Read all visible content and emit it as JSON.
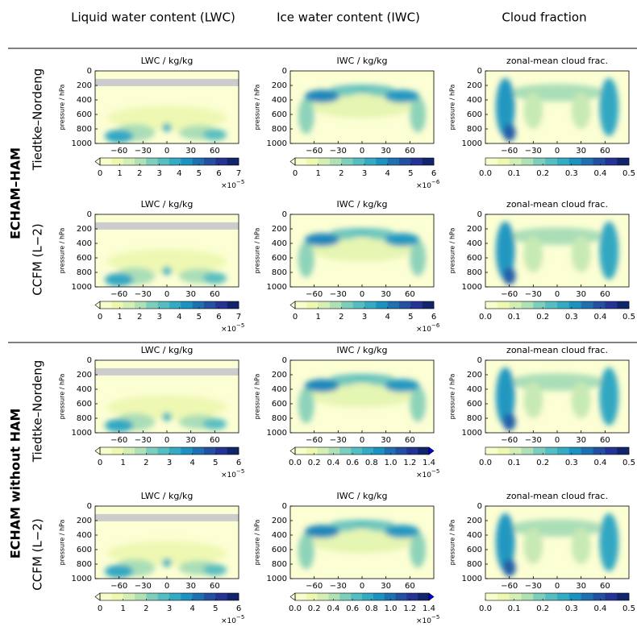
{
  "column_headers": [
    "Liquid water content (LWC)",
    "Ice water content (IWC)",
    "Cloud fraction"
  ],
  "row_groups": [
    {
      "label": "ECHAM–HAM",
      "rows": [
        "Tiedtke–Nordeng",
        "CCFM (L−2)"
      ]
    },
    {
      "label": "ECHAM without HAM",
      "rows": [
        "Tiedtke–Nordeng",
        "CCFM (L−2)"
      ]
    }
  ],
  "chart_data": [
    {
      "type": "contour",
      "title": "LWC / kg/kg",
      "y_label": "pressure / hPa",
      "xlim": [
        -90,
        90
      ],
      "ylim": [
        0,
        1000
      ],
      "y_inverted": true,
      "xticks": [
        {
          "value": -60,
          "label": "−60"
        },
        {
          "value": -30,
          "label": "−30"
        },
        0,
        30,
        60
      ],
      "yticks": [
        0,
        200,
        400,
        600,
        800,
        1000
      ],
      "colorbar": {
        "lim": [
          0,
          7
        ],
        "ticks": [
          0,
          1,
          2,
          3,
          4,
          5,
          6,
          7
        ],
        "extend": "min",
        "multiplier": {
          "base": "×10",
          "exponent": "−5"
        }
      }
    },
    {
      "type": "contour",
      "title": "IWC / kg/kg",
      "y_label": "pressure / hPa",
      "xlim": [
        -90,
        90
      ],
      "ylim": [
        0,
        1000
      ],
      "y_inverted": true,
      "xticks": [
        {
          "value": -60,
          "label": "−60"
        },
        {
          "value": -30,
          "label": "−30"
        },
        0,
        30,
        60
      ],
      "yticks": [
        0,
        200,
        400,
        600,
        800,
        1000
      ],
      "colorbar": {
        "lim": [
          0,
          6
        ],
        "ticks": [
          0,
          1,
          2,
          3,
          4,
          5,
          6
        ],
        "extend": "min",
        "multiplier": {
          "base": "×10",
          "exponent": "−6"
        }
      }
    },
    {
      "type": "contour",
      "title": "zonal-mean cloud frac.",
      "y_label": "pressure / hPa",
      "xlim": [
        -90,
        90
      ],
      "ylim": [
        0,
        1000
      ],
      "y_inverted": true,
      "xticks": [
        {
          "value": -60,
          "label": "−60"
        },
        {
          "value": -30,
          "label": "−30"
        },
        0,
        30,
        60
      ],
      "yticks": [
        0,
        200,
        400,
        600,
        800,
        1000
      ],
      "colorbar": {
        "lim": [
          0,
          0.5
        ],
        "ticks": [
          {
            "value": 0,
            "label": "0.0"
          },
          0.1,
          0.2,
          0.3,
          0.4,
          0.5
        ],
        "extend": "neither"
      }
    },
    {
      "type": "contour",
      "title": "LWC / kg/kg",
      "y_label": "pressure / hPa",
      "xlim": [
        -90,
        90
      ],
      "ylim": [
        0,
        1000
      ],
      "y_inverted": true,
      "xticks": [
        {
          "value": -60,
          "label": "−60"
        },
        {
          "value": -30,
          "label": "−30"
        },
        0,
        30,
        60
      ],
      "yticks": [
        0,
        200,
        400,
        600,
        800,
        1000
      ],
      "colorbar": {
        "lim": [
          0,
          7
        ],
        "ticks": [
          0,
          1,
          2,
          3,
          4,
          5,
          6,
          7
        ],
        "extend": "min",
        "multiplier": {
          "base": "×10",
          "exponent": "−5"
        }
      }
    },
    {
      "type": "contour",
      "title": "IWC / kg/kg",
      "y_label": "pressure / hPa",
      "xlim": [
        -90,
        90
      ],
      "ylim": [
        0,
        1000
      ],
      "y_inverted": true,
      "xticks": [
        {
          "value": -60,
          "label": "−60"
        },
        {
          "value": -30,
          "label": "−30"
        },
        0,
        30,
        60
      ],
      "yticks": [
        0,
        200,
        400,
        600,
        800,
        1000
      ],
      "colorbar": {
        "lim": [
          0,
          6
        ],
        "ticks": [
          0,
          1,
          2,
          3,
          4,
          5,
          6
        ],
        "extend": "min",
        "multiplier": {
          "base": "×10",
          "exponent": "−6"
        }
      }
    },
    {
      "type": "contour",
      "title": "zonal-mean cloud frac.",
      "y_label": "pressure / hPa",
      "xlim": [
        -90,
        90
      ],
      "ylim": [
        0,
        1000
      ],
      "y_inverted": true,
      "xticks": [
        {
          "value": -60,
          "label": "−60"
        },
        {
          "value": -30,
          "label": "−30"
        },
        0,
        30,
        60
      ],
      "yticks": [
        0,
        200,
        400,
        600,
        800,
        1000
      ],
      "colorbar": {
        "lim": [
          0,
          0.5
        ],
        "ticks": [
          {
            "value": 0,
            "label": "0.0"
          },
          0.1,
          0.2,
          0.3,
          0.4,
          0.5
        ],
        "extend": "neither"
      }
    },
    {
      "type": "contour",
      "title": "LWC / kg/kg",
      "y_label": "pressure / hPa",
      "xlim": [
        -90,
        90
      ],
      "ylim": [
        0,
        1000
      ],
      "y_inverted": true,
      "xticks": [
        {
          "value": -60,
          "label": "−60"
        },
        {
          "value": -30,
          "label": "−30"
        },
        0,
        30,
        60
      ],
      "yticks": [
        0,
        200,
        400,
        600,
        800,
        1000
      ],
      "colorbar": {
        "lim": [
          0,
          6
        ],
        "ticks": [
          0,
          1,
          2,
          3,
          4,
          5,
          6
        ],
        "extend": "min",
        "multiplier": {
          "base": "×10",
          "exponent": "−5"
        }
      }
    },
    {
      "type": "contour",
      "title": "IWC / kg/kg",
      "y_label": "pressure / hPa",
      "xlim": [
        -90,
        90
      ],
      "ylim": [
        0,
        1000
      ],
      "y_inverted": true,
      "xticks": [
        {
          "value": -60,
          "label": "−60"
        },
        {
          "value": -30,
          "label": "−30"
        },
        0,
        30,
        60
      ],
      "yticks": [
        0,
        200,
        400,
        600,
        800,
        1000
      ],
      "colorbar": {
        "lim": [
          0,
          1.4
        ],
        "ticks": [
          {
            "value": 0,
            "label": "0.0"
          },
          0.2,
          0.4,
          0.6,
          0.8,
          {
            "value": 1,
            "label": "1.0"
          },
          1.2,
          1.4
        ],
        "extend": "both",
        "multiplier": {
          "base": "×10",
          "exponent": "−5"
        }
      }
    },
    {
      "type": "contour",
      "title": "zonal-mean cloud frac.",
      "y_label": "pressure / hPa",
      "xlim": [
        -90,
        90
      ],
      "ylim": [
        0,
        1000
      ],
      "y_inverted": true,
      "xticks": [
        {
          "value": -60,
          "label": "−60"
        },
        {
          "value": -30,
          "label": "−30"
        },
        0,
        30,
        60
      ],
      "yticks": [
        0,
        200,
        400,
        600,
        800,
        1000
      ],
      "colorbar": {
        "lim": [
          0,
          0.5
        ],
        "ticks": [
          {
            "value": 0,
            "label": "0.0"
          },
          0.1,
          0.2,
          0.3,
          0.4,
          0.5
        ],
        "extend": "neither"
      }
    },
    {
      "type": "contour",
      "title": "LWC / kg/kg",
      "y_label": "pressure / hPa",
      "xlim": [
        -90,
        90
      ],
      "ylim": [
        0,
        1000
      ],
      "y_inverted": true,
      "xticks": [
        {
          "value": -60,
          "label": "−60"
        },
        {
          "value": -30,
          "label": "−30"
        },
        0,
        30,
        60
      ],
      "yticks": [
        0,
        200,
        400,
        600,
        800,
        1000
      ],
      "colorbar": {
        "lim": [
          0,
          6
        ],
        "ticks": [
          0,
          1,
          2,
          3,
          4,
          5,
          6
        ],
        "extend": "min",
        "multiplier": {
          "base": "×10",
          "exponent": "−5"
        }
      }
    },
    {
      "type": "contour",
      "title": "IWC / kg/kg",
      "y_label": "pressure / hPa",
      "xlim": [
        -90,
        90
      ],
      "ylim": [
        0,
        1000
      ],
      "y_inverted": true,
      "xticks": [
        {
          "value": -60,
          "label": "−60"
        },
        {
          "value": -30,
          "label": "−30"
        },
        0,
        30,
        60
      ],
      "yticks": [
        0,
        200,
        400,
        600,
        800,
        1000
      ],
      "colorbar": {
        "lim": [
          0,
          1.4
        ],
        "ticks": [
          {
            "value": 0,
            "label": "0.0"
          },
          0.2,
          0.4,
          0.6,
          0.8,
          {
            "value": 1,
            "label": "1.0"
          },
          1.2,
          1.4
        ],
        "extend": "both",
        "multiplier": {
          "base": "×10",
          "exponent": "−5"
        }
      }
    },
    {
      "type": "contour",
      "title": "zonal-mean cloud frac.",
      "y_label": "pressure / hPa",
      "xlim": [
        -90,
        90
      ],
      "ylim": [
        0,
        1000
      ],
      "y_inverted": true,
      "xticks": [
        {
          "value": -60,
          "label": "−60"
        },
        {
          "value": -30,
          "label": "−30"
        },
        0,
        30,
        60
      ],
      "yticks": [
        0,
        200,
        400,
        600,
        800,
        1000
      ],
      "colorbar": {
        "lim": [
          0,
          0.5
        ],
        "ticks": [
          {
            "value": 0,
            "label": "0.0"
          },
          0.1,
          0.2,
          0.3,
          0.4,
          0.5
        ],
        "extend": "neither"
      }
    }
  ]
}
